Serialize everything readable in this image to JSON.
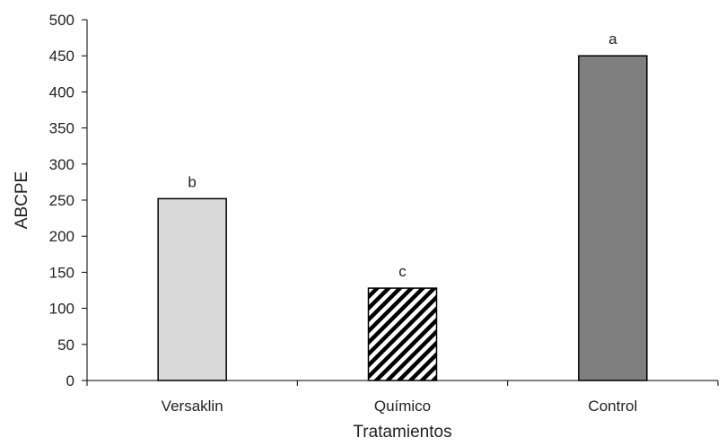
{
  "chart_data": {
    "type": "bar",
    "categories": [
      "Versaklin",
      "Químico",
      "Control"
    ],
    "values": [
      252,
      128,
      450
    ],
    "bar_labels": [
      "b",
      "c",
      "a"
    ],
    "bar_fills": [
      "solid-light-gray",
      "diagonal-hatch",
      "solid-dark-gray"
    ],
    "colors": {
      "light": "#d9d9d9",
      "dark": "#7f7f7f",
      "outline": "#000000",
      "hatch": "#000000"
    },
    "title": "",
    "xlabel": "Tratamientos",
    "ylabel": "ABCPE",
    "ylim": [
      0,
      500
    ],
    "yticks": [
      "0",
      "50",
      "100",
      "150",
      "200",
      "250",
      "300",
      "350",
      "400",
      "450",
      "500"
    ],
    "grid": false,
    "legend": "none"
  }
}
